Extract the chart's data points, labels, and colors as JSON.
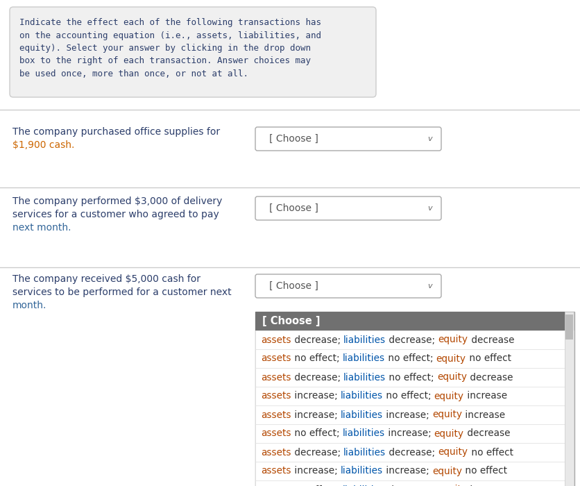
{
  "bg_color": "#ffffff",
  "instruction_box_bg": "#f0f0f0",
  "instruction_box_border": "#cccccc",
  "instruction_text": "Indicate the effect each of the following transactions has\non the accounting equation (i.e., assets, liabilities, and\nequity). Select your answer by clicking in the drop down\nbox to the right of each transaction. Answer choices may\nbe used once, more than once, or not at all.",
  "instruction_font_size": 9.0,
  "instruction_text_color": "#2c3e6b",
  "transaction_text_color_normal": "#2c3e6b",
  "transaction_text_color_blue": "#336699",
  "transaction_text_color_orange": "#cc6600",
  "choose_box_border": "#aaaaaa",
  "choose_text": "[ Choose ]",
  "dropdown_header_bg": "#707070",
  "dropdown_header_text_color": "#ffffff",
  "dropdown_bg": "#ffffff",
  "dropdown_border": "#aaaaaa",
  "dropdown_items": [
    "[ Choose ]",
    "assets decrease; liabilities decrease; equity decrease",
    "assets no effect; liabilities no effect; equity no effect",
    "assets decrease; liabilities no effect; equity decrease",
    "assets increase; liabilities no effect; equity increase",
    "assets increase; liabilities increase; equity increase",
    "assets no effect; liabilities increase; equity decrease",
    "assets decrease; liabilities decrease; equity no effect",
    "assets increase; liabilities increase; equity no effect",
    "assets no effect; liabilities decrease; equity increase"
  ],
  "col_assets": "#b34700",
  "col_liabilities": "#0055aa",
  "col_equity": "#b34700",
  "col_effect": "#b34700",
  "col_punct": "#333333",
  "separator_color": "#cccccc",
  "transaction_font_size": 10,
  "dropdown_font_size": 9.8
}
